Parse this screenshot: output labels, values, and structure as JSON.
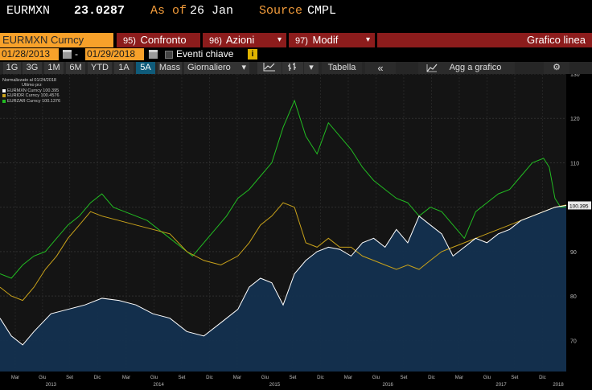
{
  "header": {
    "ticker": "EURMXN",
    "price": "23.0287",
    "as_of_label": "As of",
    "as_of_value": "26 Jan",
    "source_label": "Source",
    "source_value": "CMPL"
  },
  "command_bar": {
    "security": "EURMXN Curncy",
    "buttons": [
      {
        "num": "95)",
        "label": "Confronto",
        "dropdown": ""
      },
      {
        "num": "96)",
        "label": "Azioni",
        "dropdown": "▾"
      },
      {
        "num": "97)",
        "label": "Modif",
        "dropdown": "▾"
      }
    ],
    "title": "Grafico linea"
  },
  "date_range": {
    "start": "01/28/2013",
    "separator": "-",
    "end": "01/29/2018",
    "events_label": "Eventi chiave",
    "info_icon": "i"
  },
  "toolbar": {
    "ranges": [
      "1G",
      "3G",
      "1M",
      "6M",
      "YTD",
      "1A",
      "5A",
      "Mass"
    ],
    "active_range": "5A",
    "frequency": "Giornaliero",
    "frequency_dropdown": "▾",
    "dropdown_arrow": "▾",
    "table_label": "Tabella",
    "collapse_label": "«",
    "add_label": "Agg a grafico",
    "settings_icon": "gear-icon"
  },
  "legend": {
    "header_line1": "Normalizzato al 01/24/2018",
    "header_line2": "Ultimo prz",
    "entries": [
      {
        "text": "EURMXN Curncy 100.395",
        "color": "#ffffff"
      },
      {
        "text": "EURIDR Curncy 100.4576",
        "color": "#c9a21a"
      },
      {
        "text": "EURZAR Curncy 100.1376",
        "color": "#22bb22"
      }
    ]
  },
  "chart_data": {
    "type": "line",
    "title": "",
    "ylim": [
      63,
      130
    ],
    "y_ticks": [
      70,
      80,
      90,
      100,
      110,
      120,
      130
    ],
    "last_value_label": "100.395",
    "x_ticks": [
      {
        "label": "Mar",
        "t": 0.027
      },
      {
        "label": "Giu",
        "t": 0.075
      },
      {
        "label": "Set",
        "t": 0.123
      },
      {
        "label": "Dic",
        "t": 0.172
      },
      {
        "label": "Mar",
        "t": 0.223
      },
      {
        "label": "Giu",
        "t": 0.272
      },
      {
        "label": "Set",
        "t": 0.321
      },
      {
        "label": "Dic",
        "t": 0.37
      },
      {
        "label": "Mar",
        "t": 0.419
      },
      {
        "label": "Giu",
        "t": 0.468
      },
      {
        "label": "Set",
        "t": 0.517
      },
      {
        "label": "Dic",
        "t": 0.566
      },
      {
        "label": "Mar",
        "t": 0.615
      },
      {
        "label": "Giu",
        "t": 0.664
      },
      {
        "label": "Set",
        "t": 0.713
      },
      {
        "label": "Dic",
        "t": 0.762
      },
      {
        "label": "Mar",
        "t": 0.811
      },
      {
        "label": "Giu",
        "t": 0.86
      },
      {
        "label": "Set",
        "t": 0.909
      },
      {
        "label": "Dic",
        "t": 0.958
      }
    ],
    "year_ticks": [
      {
        "label": "2013",
        "t": 0.09
      },
      {
        "label": "2014",
        "t": 0.28
      },
      {
        "label": "2015",
        "t": 0.485
      },
      {
        "label": "2016",
        "t": 0.685
      },
      {
        "label": "2017",
        "t": 0.885
      },
      {
        "label": "2018",
        "t": 1.0
      }
    ],
    "series": [
      {
        "name": "EURMXN Curncy",
        "color": "#ffffff",
        "fill": "#13304f",
        "x": [
          0,
          0.02,
          0.04,
          0.06,
          0.09,
          0.12,
          0.15,
          0.18,
          0.21,
          0.24,
          0.27,
          0.3,
          0.33,
          0.36,
          0.39,
          0.42,
          0.44,
          0.46,
          0.48,
          0.5,
          0.52,
          0.54,
          0.56,
          0.58,
          0.6,
          0.62,
          0.64,
          0.66,
          0.68,
          0.7,
          0.72,
          0.74,
          0.76,
          0.78,
          0.8,
          0.82,
          0.84,
          0.86,
          0.88,
          0.9,
          0.92,
          0.94,
          0.96,
          0.98,
          1.0
        ],
        "y": [
          75,
          71,
          69,
          72,
          76,
          77,
          78,
          79.5,
          79,
          78,
          76,
          75,
          72,
          71,
          74,
          77,
          82,
          84,
          83,
          78,
          85,
          88,
          90,
          91,
          90.5,
          89,
          92,
          93,
          91,
          95,
          92,
          98,
          96,
          94,
          89,
          91,
          93,
          92,
          94,
          95,
          97,
          98,
          99,
          100,
          100.4
        ]
      },
      {
        "name": "EURIDR Curncy",
        "color": "#c9a21a",
        "x": [
          0,
          0.02,
          0.04,
          0.06,
          0.08,
          0.1,
          0.12,
          0.14,
          0.16,
          0.18,
          0.21,
          0.24,
          0.27,
          0.3,
          0.33,
          0.36,
          0.39,
          0.42,
          0.44,
          0.46,
          0.48,
          0.5,
          0.52,
          0.54,
          0.56,
          0.58,
          0.6,
          0.62,
          0.64,
          0.66,
          0.68,
          0.7,
          0.72,
          0.74,
          0.76,
          0.78,
          0.8,
          0.82,
          0.84,
          0.86,
          0.88,
          0.9,
          0.92,
          0.94,
          0.96,
          0.98,
          1.0
        ],
        "y": [
          82,
          80,
          79,
          82,
          86,
          89,
          93,
          96,
          99,
          98,
          97,
          96,
          95,
          94,
          90,
          88,
          87,
          89,
          92,
          96,
          98,
          101,
          100,
          92,
          91,
          93,
          91,
          91,
          89,
          88,
          87,
          86,
          87,
          86,
          88,
          90,
          91,
          92,
          93,
          94,
          95,
          96,
          97,
          98,
          99,
          100,
          100.5
        ]
      },
      {
        "name": "EURZAR Curncy",
        "color": "#22bb22",
        "x": [
          0,
          0.02,
          0.04,
          0.06,
          0.08,
          0.1,
          0.12,
          0.14,
          0.16,
          0.18,
          0.2,
          0.22,
          0.24,
          0.26,
          0.28,
          0.3,
          0.32,
          0.34,
          0.36,
          0.38,
          0.4,
          0.42,
          0.44,
          0.46,
          0.48,
          0.5,
          0.52,
          0.54,
          0.56,
          0.58,
          0.6,
          0.62,
          0.64,
          0.66,
          0.68,
          0.7,
          0.72,
          0.74,
          0.76,
          0.78,
          0.8,
          0.82,
          0.84,
          0.86,
          0.88,
          0.9,
          0.92,
          0.94,
          0.96,
          0.97,
          0.98,
          0.99,
          1.0
        ],
        "y": [
          85,
          84,
          87,
          89,
          90,
          93,
          96,
          98,
          101,
          103,
          100,
          99,
          98,
          97,
          95,
          93,
          91,
          89,
          92,
          95,
          98,
          102,
          104,
          107,
          110,
          118,
          124,
          116,
          112,
          119,
          116,
          113,
          109,
          106,
          104,
          102,
          101,
          98,
          100,
          99,
          96,
          93,
          99,
          101,
          103,
          104,
          107,
          110,
          111,
          109,
          102,
          100,
          100.1
        ]
      }
    ]
  }
}
